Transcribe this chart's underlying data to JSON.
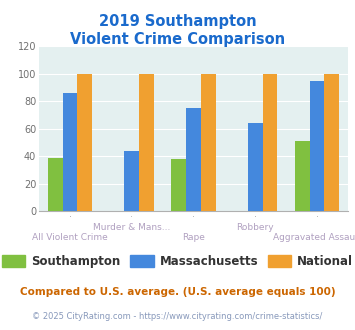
{
  "title_line1": "2019 Southampton",
  "title_line2": "Violent Crime Comparison",
  "categories": [
    "All Violent Crime",
    "Murder & Mans...",
    "Rape",
    "Robbery",
    "Aggravated Assault"
  ],
  "top_labels": [
    "",
    "Murder & Mans...",
    "",
    "Robbery",
    ""
  ],
  "bottom_labels": [
    "All Violent Crime",
    "",
    "Rape",
    "",
    "Aggravated Assault"
  ],
  "southampton": [
    39,
    0,
    38,
    0,
    51
  ],
  "massachusetts": [
    86,
    44,
    75,
    64,
    95
  ],
  "national": [
    100,
    100,
    100,
    100,
    100
  ],
  "colors": {
    "southampton": "#80c040",
    "massachusetts": "#4488dd",
    "national": "#f0a030"
  },
  "ylim": [
    0,
    120
  ],
  "yticks": [
    0,
    20,
    40,
    60,
    80,
    100,
    120
  ],
  "background_color": "#e4f0f0",
  "title_color": "#1a6acc",
  "label_color": "#b0a0c0",
  "footer_text": "Compared to U.S. average. (U.S. average equals 100)",
  "footer_color": "#cc6600",
  "copyright_text": "© 2025 CityRating.com - https://www.cityrating.com/crime-statistics/",
  "copyright_color": "#8899bb",
  "legend_labels": [
    "Southampton",
    "Massachusetts",
    "National"
  ]
}
